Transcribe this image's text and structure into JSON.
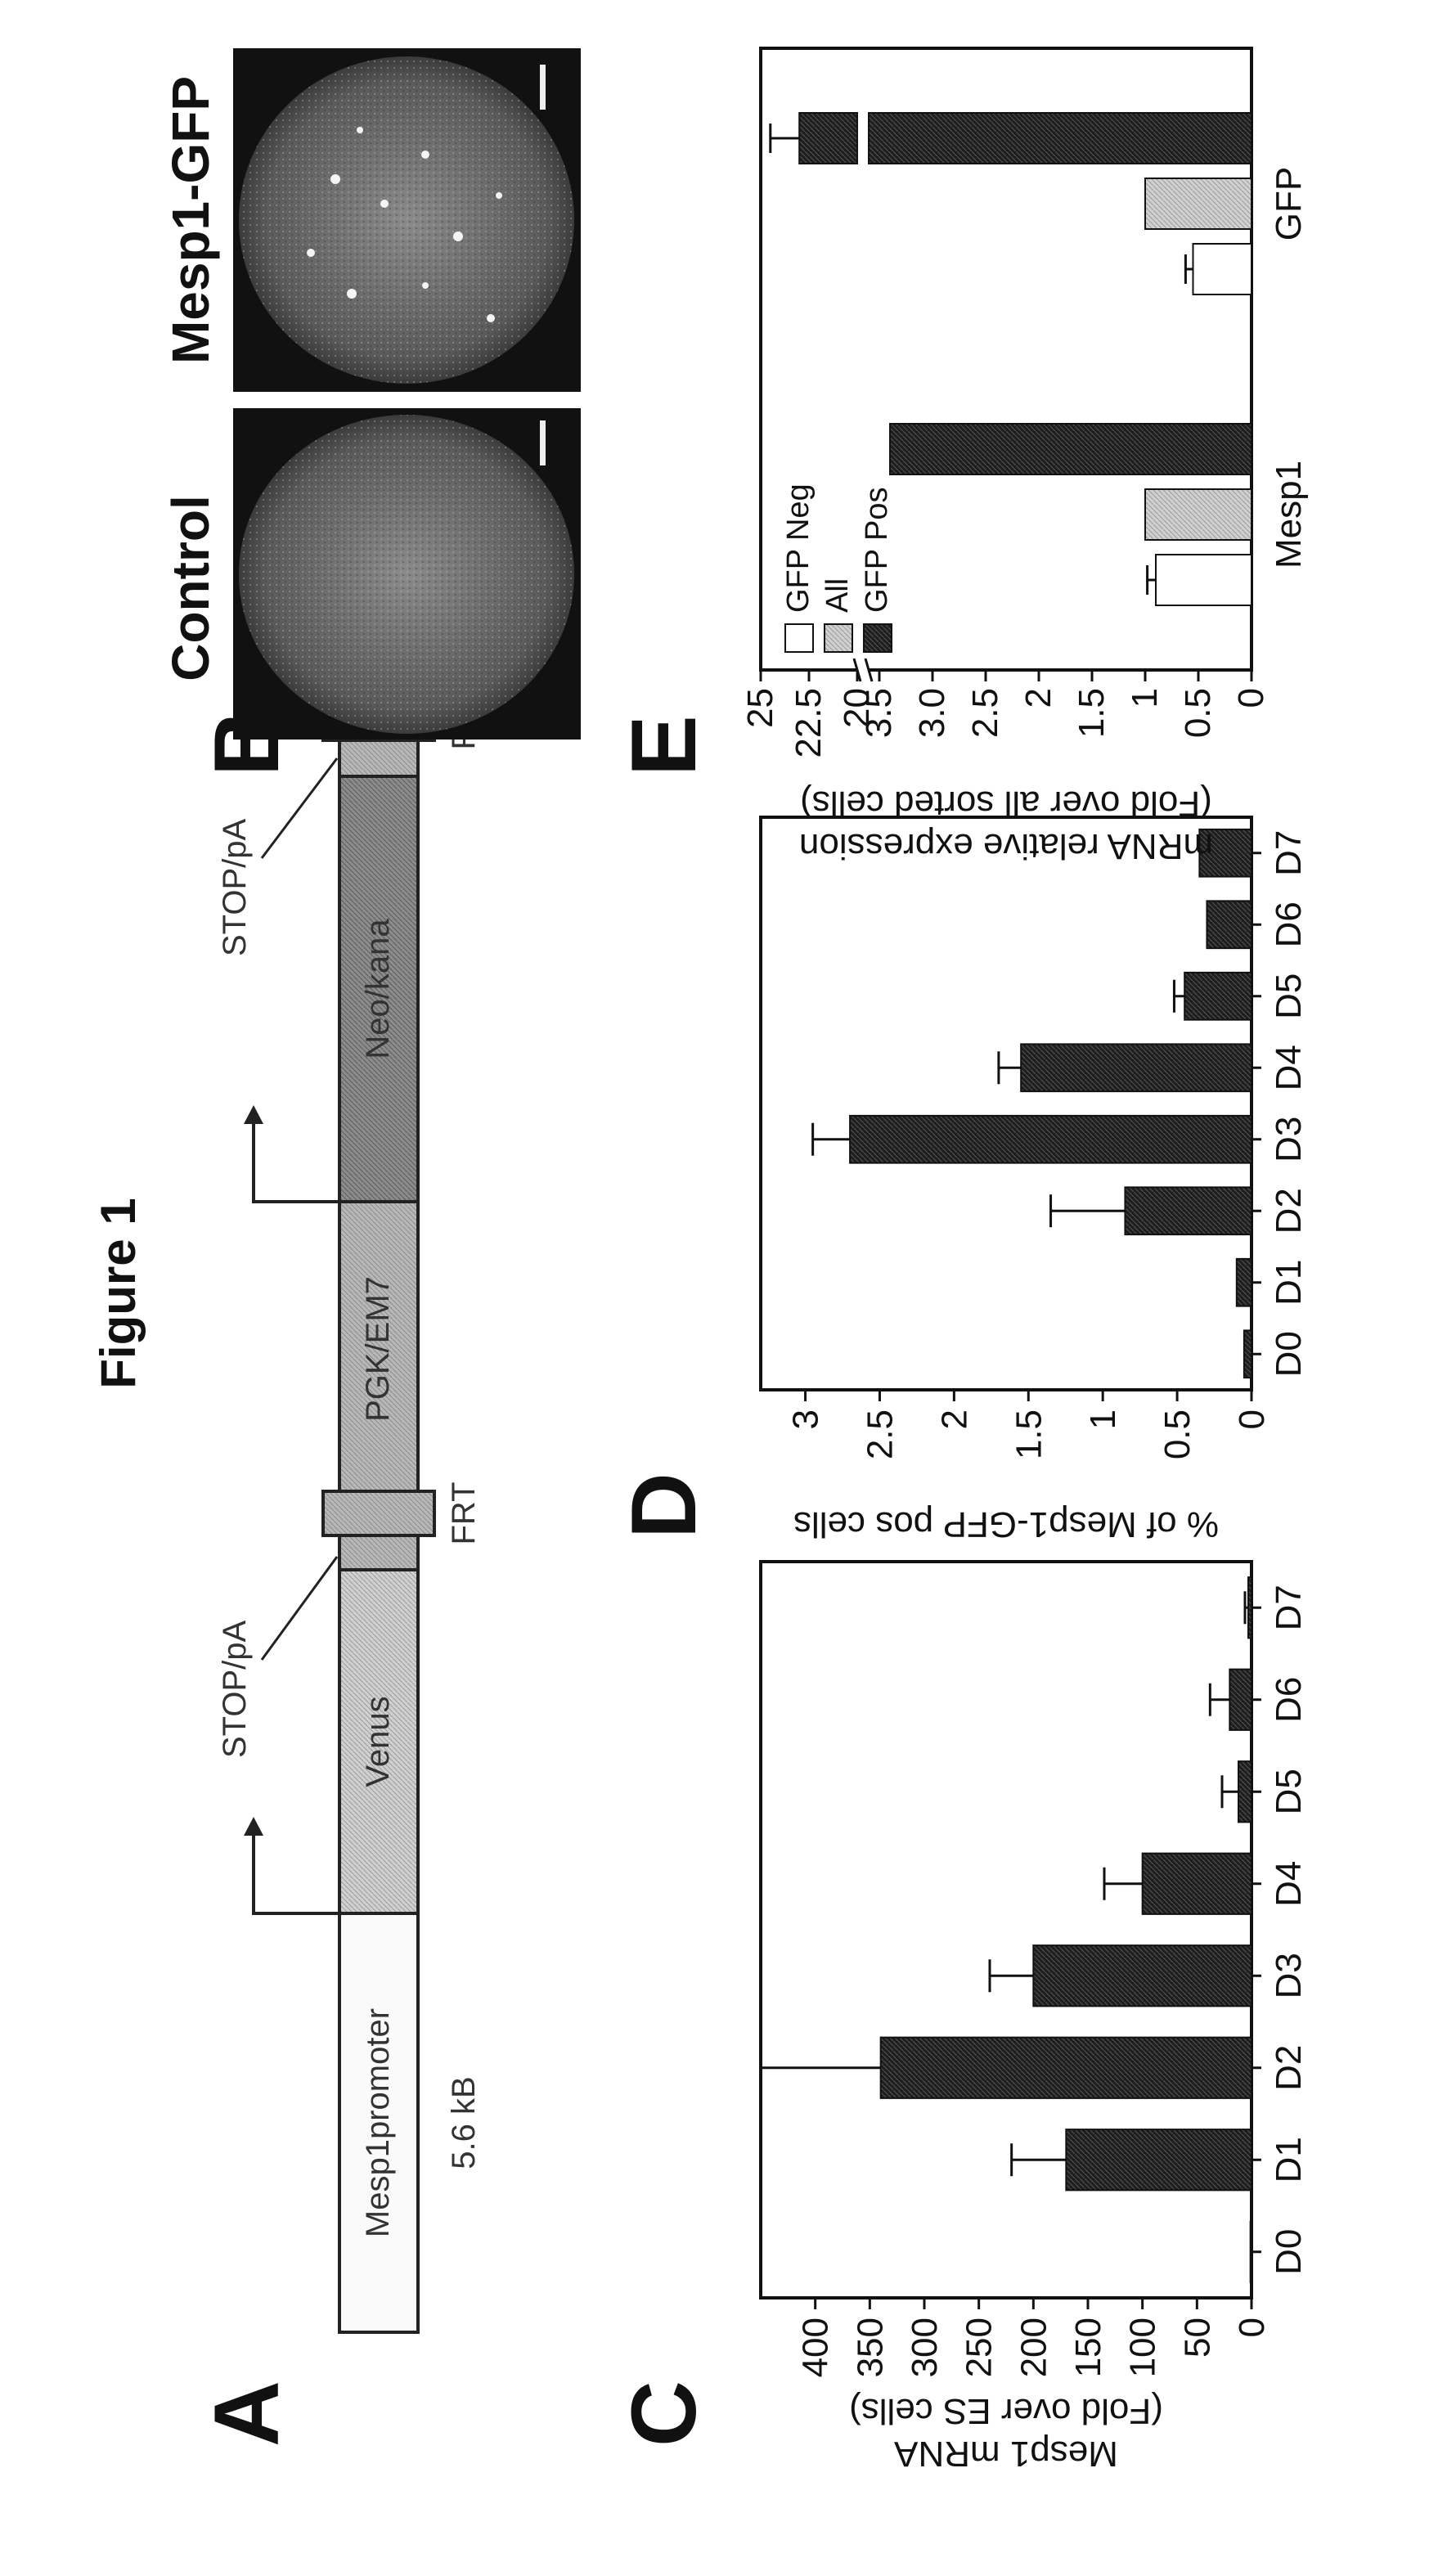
{
  "figure": {
    "title": "Figure 1",
    "panel_letters": [
      "A",
      "B",
      "C",
      "D",
      "E"
    ]
  },
  "construct": {
    "size_label": "5.6 kB",
    "segments": [
      "Mesp1promoter",
      "Venus",
      "PGK/EM7",
      "Neo/kana"
    ],
    "labels": {
      "stop1": "STOP/pA",
      "stop2": "STOP/pA",
      "frt1": "FRT",
      "frt2": "FRT"
    }
  },
  "micrographs": {
    "left_title": "Control",
    "right_title": "Mesp1-GFP"
  },
  "colors": {
    "dark_bar": "#222222",
    "light_bar": "#cfcfcf",
    "white_bar": "#ffffff",
    "axis": "#111111"
  },
  "chart_data": [
    {
      "id": "C",
      "type": "bar",
      "categories": [
        "D0",
        "D1",
        "D2",
        "D3",
        "D4",
        "D5",
        "D6",
        "D7"
      ],
      "values": [
        1,
        170,
        340,
        200,
        100,
        12,
        20,
        3
      ],
      "errors": [
        0,
        50,
        110,
        40,
        35,
        15,
        18,
        3
      ],
      "ylabel": [
        "Mesp1 mRNA",
        "(Fold over ES cells)"
      ],
      "yticks": [
        0,
        50,
        100,
        150,
        200,
        250,
        300,
        350,
        400
      ],
      "ylim": [
        0,
        450
      ],
      "legend": "none"
    },
    {
      "id": "D",
      "type": "bar",
      "categories": [
        "D0",
        "D1",
        "D2",
        "D3",
        "D4",
        "D5",
        "D6",
        "D7"
      ],
      "values": [
        0.05,
        0.1,
        0.85,
        2.7,
        1.55,
        0.45,
        0.3,
        0.35
      ],
      "errors": [
        0,
        0,
        0.5,
        0.25,
        0.15,
        0.07,
        0,
        0
      ],
      "ylabel": [
        "% of Mesp1-GFP pos cells"
      ],
      "yticks": [
        "0",
        "0.5",
        "1",
        "1.5",
        "2",
        "2.5",
        "3"
      ],
      "ylim": [
        0,
        3.3
      ],
      "legend": "none"
    },
    {
      "id": "E",
      "type": "bar",
      "categories": [
        "Mesp1",
        "GFP"
      ],
      "series": [
        {
          "name": "GFP Neg",
          "values": [
            0.9,
            0.55
          ],
          "errors": [
            0.08,
            0.07
          ]
        },
        {
          "name": "All",
          "values": [
            1.0,
            1.0
          ],
          "errors": [
            0,
            0
          ]
        },
        {
          "name": "GFP Pos",
          "values": [
            3.4,
            23.0
          ],
          "errors": [
            0,
            1.5
          ]
        }
      ],
      "ylabel": [
        "mRNA relative expression",
        "(Fold over all sorted cells)"
      ],
      "yticks": [
        "0",
        "0.5",
        "1",
        "1.5",
        "2",
        "2.5",
        "3.0",
        "3.5",
        "20",
        "22.5",
        "25"
      ],
      "ylim": [
        0,
        25
      ],
      "axis_break": [
        3.6,
        20
      ],
      "legend": "top-left"
    }
  ]
}
